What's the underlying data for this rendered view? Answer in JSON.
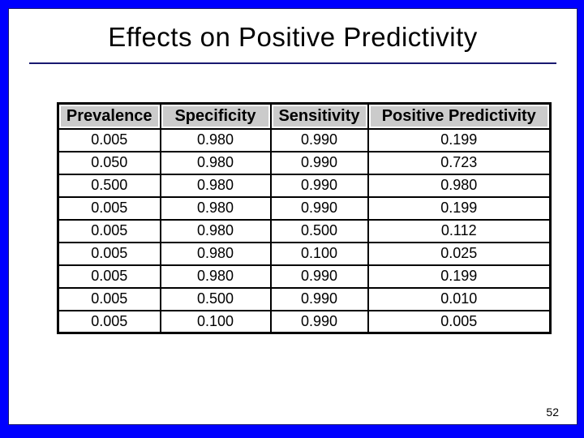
{
  "slide": {
    "title": "Effects on Positive Predictivity",
    "page_number": "52"
  },
  "table": {
    "headers": [
      "Prevalence",
      "Specificity",
      "Sensitivity",
      "Positive Predictivity"
    ],
    "rows": [
      [
        "0.005",
        "0.980",
        "0.990",
        "0.199"
      ],
      [
        "0.050",
        "0.980",
        "0.990",
        "0.723"
      ],
      [
        "0.500",
        "0.980",
        "0.990",
        "0.980"
      ],
      [
        "0.005",
        "0.980",
        "0.990",
        "0.199"
      ],
      [
        "0.005",
        "0.980",
        "0.500",
        "0.112"
      ],
      [
        "0.005",
        "0.980",
        "0.100",
        "0.025"
      ],
      [
        "0.005",
        "0.980",
        "0.990",
        "0.199"
      ],
      [
        "0.005",
        "0.500",
        "0.990",
        "0.010"
      ],
      [
        "0.005",
        "0.100",
        "0.990",
        "0.005"
      ]
    ]
  },
  "colors": {
    "border_blue": "#0000FF",
    "divider_navy": "#191970",
    "header_bg": "#CBCBCB",
    "table_border": "#000000"
  }
}
